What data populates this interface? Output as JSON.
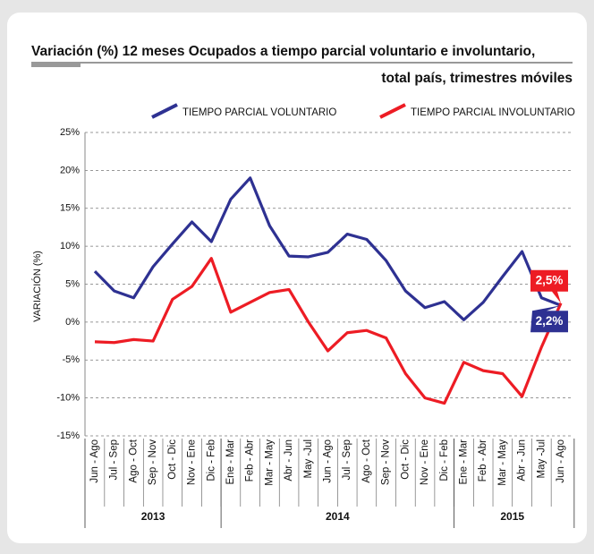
{
  "chart_data": {
    "type": "line",
    "title": "Variación (%) 12 meses Ocupados a tiempo parcial voluntario e involuntario,",
    "subtitle": "total país, trimestres móviles",
    "y_label": "VARIACIÓN (%)",
    "categories": [
      "Jun - Ago",
      "Jul - Sep",
      "Ago - Oct",
      "Sep - Nov",
      "Oct - Dic",
      "Nov - Ene",
      "Dic - Feb",
      "Ene - Mar",
      "Feb - Abr",
      "Mar - May",
      "Abr - Jun",
      "May -Jul",
      "Jun - Ago",
      "Jul - Sep",
      "Ago - Oct",
      "Sep - Nov",
      "Oct - Dic",
      "Nov - Ene",
      "Dic - Feb",
      "Ene - Mar",
      "Feb - Abr",
      "Mar - May",
      "Abr - Jun",
      "May -Jul",
      "Jun - Ago"
    ],
    "year_groups": [
      {
        "label": "2013",
        "start": 0,
        "end": 6
      },
      {
        "label": "2014",
        "start": 7,
        "end": 18
      },
      {
        "label": "2015",
        "start": 19,
        "end": 24
      }
    ],
    "series": [
      {
        "name": "TIEMPO PARCIAL VOLUNTARIO",
        "color": "#2e3192",
        "values": [
          6.7,
          4.1,
          3.2,
          7.3,
          10.3,
          13.2,
          10.6,
          16.2,
          19.0,
          12.7,
          8.7,
          8.6,
          9.2,
          11.6,
          10.9,
          8.1,
          4.1,
          1.9,
          2.7,
          0.3,
          2.6,
          6.0,
          9.3,
          3.2,
          2.2
        ],
        "value_labels": [
          null,
          null,
          null,
          null,
          null,
          null,
          null,
          null,
          null,
          null,
          null,
          null,
          null,
          null,
          null,
          null,
          null,
          null,
          null,
          null,
          null,
          null,
          null,
          null,
          "2,2%"
        ]
      },
      {
        "name": "TIEMPO PARCIAL INVOLUNTARIO",
        "color": "#ed1c24",
        "values": [
          -2.6,
          -2.7,
          -2.3,
          -2.5,
          3.0,
          4.7,
          8.4,
          1.3,
          2.6,
          3.9,
          4.3,
          0,
          -3.8,
          -1.4,
          -1.1,
          -2.1,
          -6.8,
          -10.0,
          -10.7,
          -5.3,
          -6.4,
          -6.8,
          -9.8,
          -3.3,
          2.5
        ],
        "value_labels": [
          null,
          null,
          null,
          null,
          null,
          null,
          null,
          null,
          null,
          null,
          null,
          null,
          null,
          null,
          null,
          null,
          null,
          null,
          null,
          null,
          null,
          null,
          null,
          null,
          "2,5%"
        ]
      }
    ],
    "ylim": [
      -15,
      25
    ],
    "yticks": [
      {
        "value": 25,
        "label": "25%"
      },
      {
        "value": 20,
        "label": "20%"
      },
      {
        "value": 15,
        "label": "15%"
      },
      {
        "value": 10,
        "label": "10%"
      },
      {
        "value": 5,
        "label": "5%"
      },
      {
        "value": 0,
        "label": "0%"
      },
      {
        "value": -5,
        "label": "-5%"
      },
      {
        "value": -10,
        "label": "-10%"
      },
      {
        "value": -15,
        "label": "-15%"
      }
    ],
    "grid": true
  }
}
